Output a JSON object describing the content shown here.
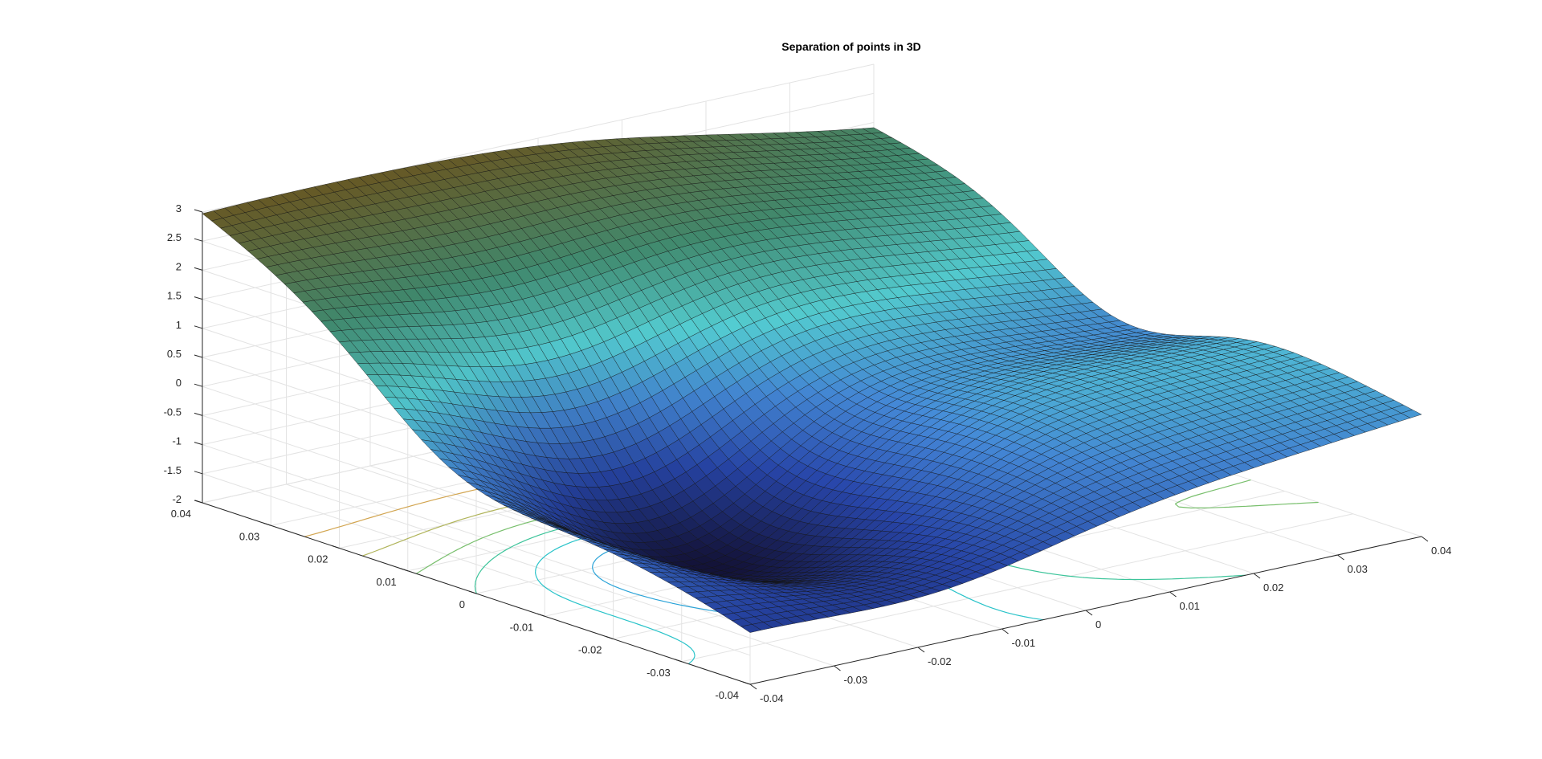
{
  "chart_data": {
    "type": "surface",
    "title": "Separation of points in 3D",
    "xlabel": "",
    "ylabel": "",
    "zlabel": "",
    "x_ticks": [
      "-0.04",
      "-0.03",
      "-0.02",
      "-0.01",
      "0",
      "0.01",
      "0.02",
      "0.03",
      "0.04"
    ],
    "y_ticks": [
      "-0.04",
      "-0.03",
      "-0.02",
      "-0.01",
      "0",
      "0.01",
      "0.02",
      "0.03",
      "0.04"
    ],
    "z_ticks": [
      "-2",
      "-1.5",
      "-1",
      "-0.5",
      "0",
      "0.5",
      "1",
      "1.5",
      "2",
      "2.5",
      "3"
    ],
    "xlim": [
      -0.04,
      0.04
    ],
    "ylim": [
      -0.04,
      0.04
    ],
    "zlim": [
      -2,
      3
    ],
    "grid": true,
    "mesh_edges": "black",
    "colormap": "blue-cyan-olive",
    "corner_values": {
      "x_min_y_max": 3.0,
      "x_max_y_max": 2.2,
      "x_max_y_min": 0.1,
      "x_min_y_min": -1.0
    },
    "contours_below": true
  }
}
